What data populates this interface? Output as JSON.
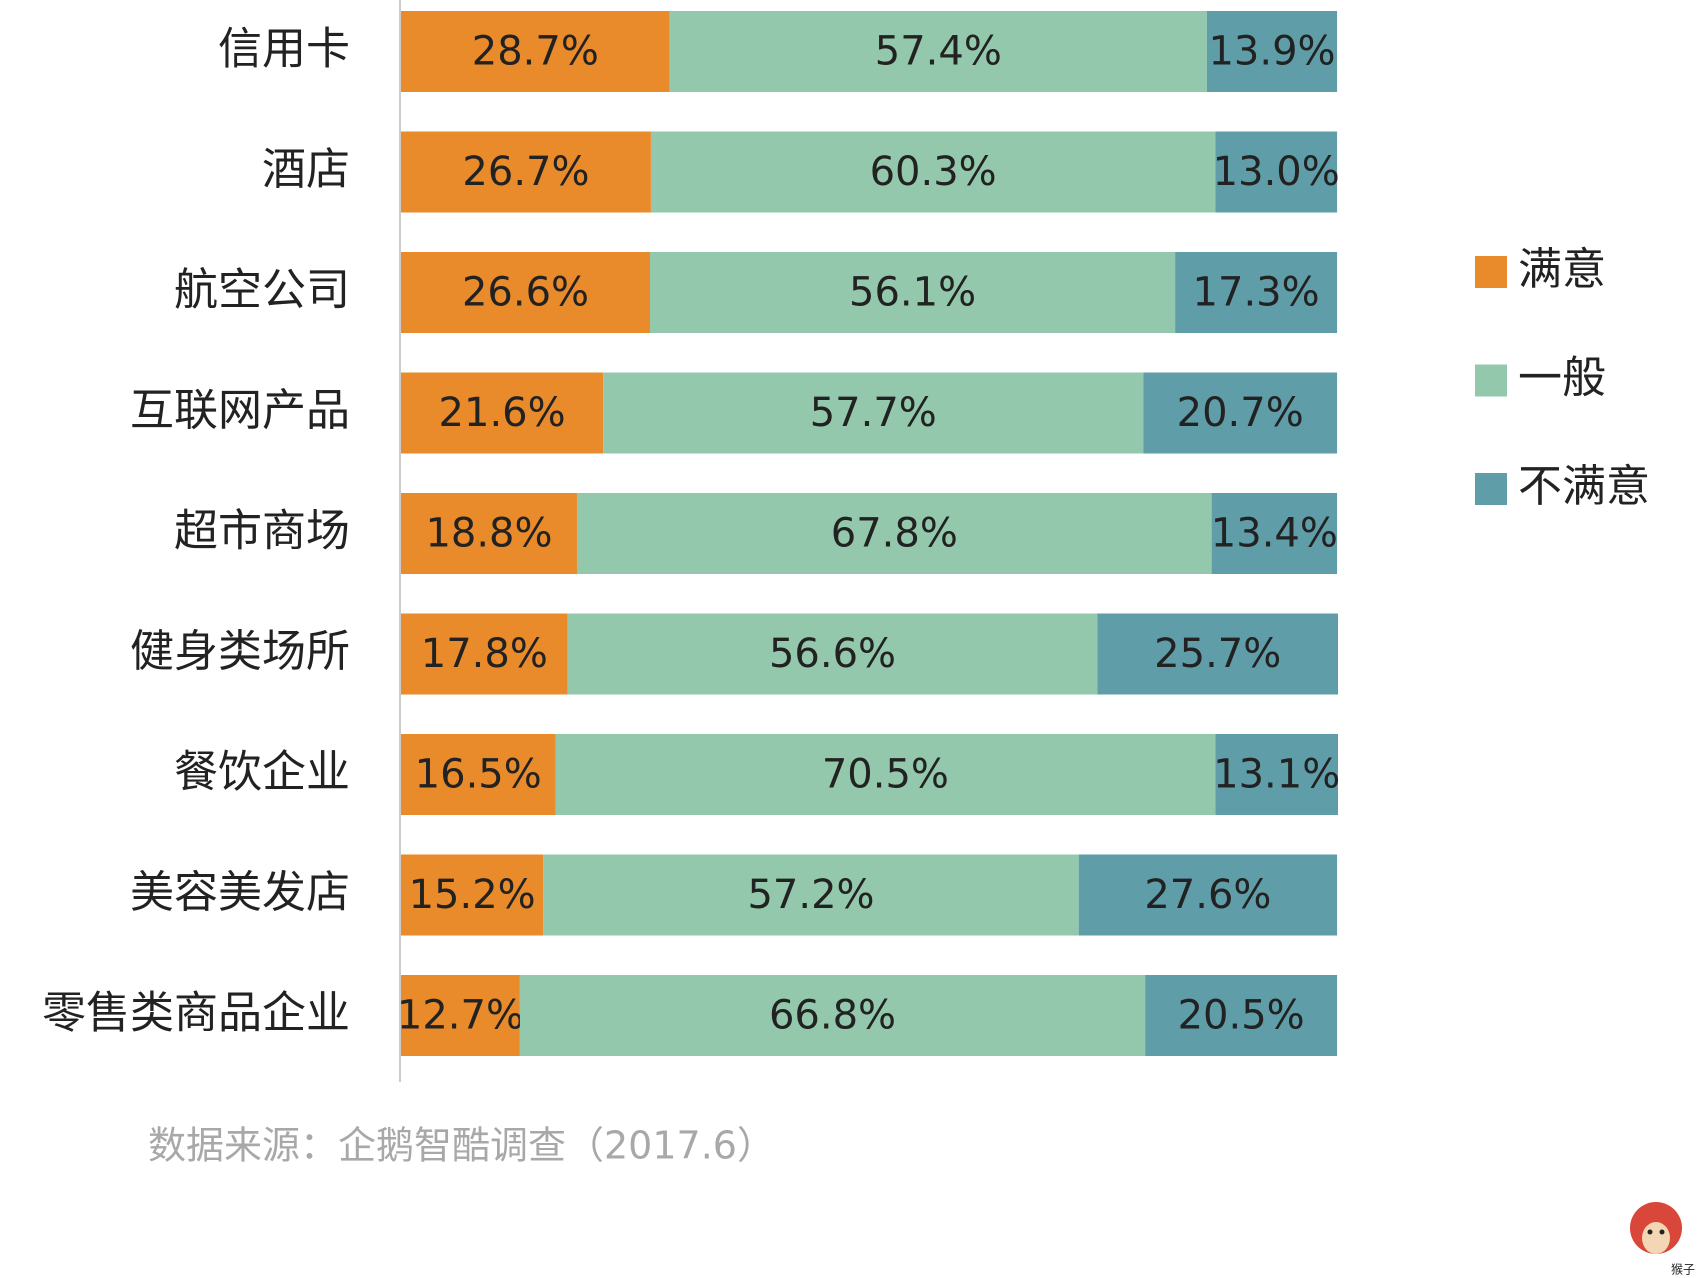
{
  "chart_data": {
    "type": "stacked_barh",
    "categories": [
      "信用卡",
      "酒店",
      "航空公司",
      "互联网产品",
      "超市商场",
      "健身类场所",
      "餐饮企业",
      "美容美发店",
      "零售类商品企业"
    ],
    "series": [
      {
        "name": "满意",
        "color": "#e98b2a",
        "values": [
          28.7,
          26.7,
          26.6,
          21.6,
          18.8,
          17.8,
          16.5,
          15.2,
          12.7
        ],
        "value_labels": [
          "28.7%",
          "26.7%",
          "26.6%",
          "21.6%",
          "18.8%",
          "17.8%",
          "16.5%",
          "15.2%",
          "12.7%"
        ]
      },
      {
        "name": "一般",
        "color": "#93c8ac",
        "values": [
          57.4,
          60.3,
          56.1,
          57.7,
          67.8,
          56.6,
          70.5,
          57.2,
          66.8
        ],
        "value_labels": [
          "57.4%",
          "60.3%",
          "56.1%",
          "57.7%",
          "67.8%",
          "56.6%",
          "70.5%",
          "57.2%",
          "66.8%"
        ]
      },
      {
        "name": "不满意",
        "color": "#5f9ea8",
        "values": [
          13.9,
          13.0,
          17.3,
          20.7,
          13.4,
          25.7,
          13.1,
          27.6,
          20.5
        ],
        "value_labels": [
          "13.9%",
          "13.0%",
          "17.3%",
          "20.7%",
          "13.4%",
          "25.7%",
          "13.1%",
          "27.6%",
          "20.5%"
        ]
      }
    ],
    "source": "数据来源：企鹅智酷调查（2017.6）",
    "watermark": "猴子"
  }
}
